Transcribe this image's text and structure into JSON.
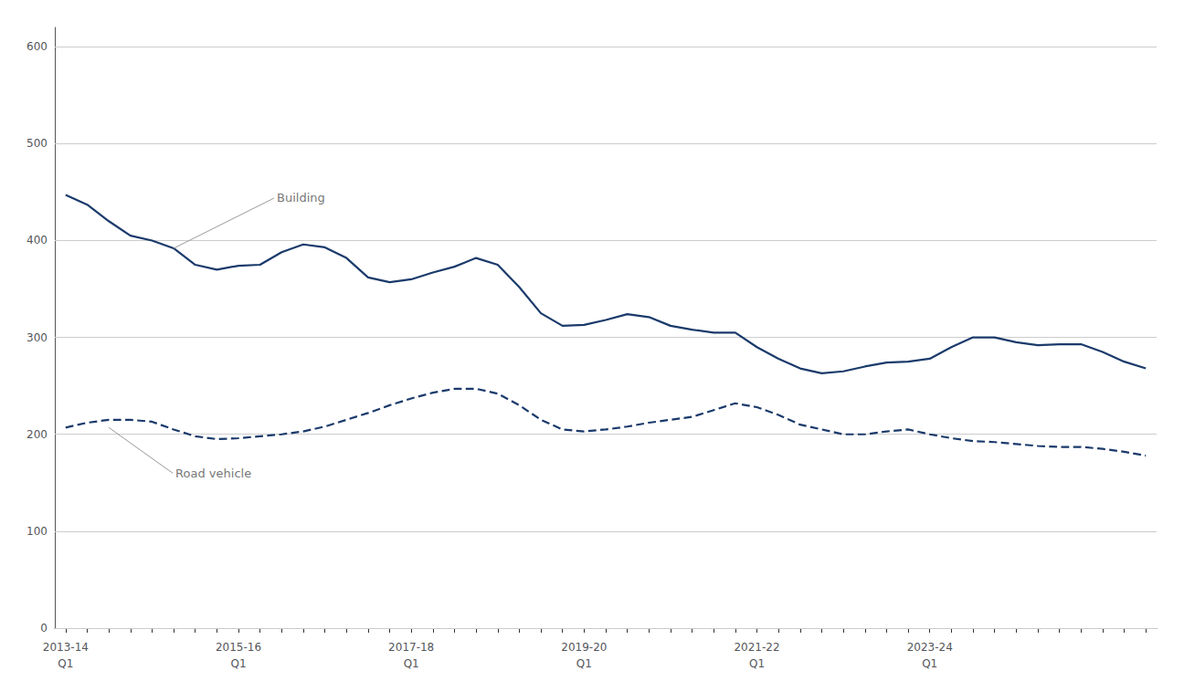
{
  "chart_data": {
    "type": "line",
    "categories": [
      "2013-14\nQ1",
      null,
      null,
      null,
      null,
      null,
      null,
      null,
      "2015-16\nQ1",
      null,
      null,
      null,
      null,
      null,
      null,
      null,
      "2017-18\nQ1",
      null,
      null,
      null,
      null,
      null,
      null,
      null,
      "2019-20\nQ1",
      null,
      null,
      null,
      null,
      null,
      null,
      null,
      "2021-22\nQ1",
      null,
      null,
      null,
      null,
      null,
      null,
      null,
      "2023-24\nQ1",
      null,
      null,
      null,
      null,
      null,
      null,
      null,
      null,
      null,
      null
    ],
    "series": [
      {
        "color": "#1a3a6b",
        "line_style": "solid",
        "values": [
          447,
          437,
          420,
          405,
          400,
          392,
          375,
          370,
          374,
          375,
          388,
          396,
          393,
          382,
          362,
          357,
          360,
          367,
          373,
          382,
          375,
          352,
          325,
          312,
          313,
          318,
          324,
          321,
          312,
          308,
          305,
          305,
          290,
          278,
          268,
          263,
          265,
          270,
          274,
          275,
          278,
          290,
          300,
          300,
          295,
          292,
          293,
          293,
          285,
          275,
          268
        ]
      },
      {
        "color": "#1a3a6b",
        "line_style": "dashed",
        "values": [
          207,
          212,
          215,
          215,
          213,
          205,
          198,
          195,
          196,
          198,
          200,
          203,
          208,
          215,
          222,
          230,
          237,
          243,
          247,
          247,
          242,
          230,
          215,
          205,
          203,
          205,
          208,
          212,
          215,
          218,
          225,
          232,
          228,
          220,
          210,
          205,
          200,
          200,
          203,
          205,
          200,
          196,
          193,
          192,
          190,
          188,
          187,
          187,
          185,
          182,
          178
        ]
      }
    ],
    "ylim": [
      0,
      620
    ],
    "yticks": [
      0,
      100,
      200,
      300,
      400,
      500,
      600
    ],
    "grid": true,
    "annotations": [
      {
        "text": "Building",
        "x": 5,
        "y": 392
      },
      {
        "text": "Road vehicle",
        "x": 2,
        "y": 207
      }
    ]
  }
}
